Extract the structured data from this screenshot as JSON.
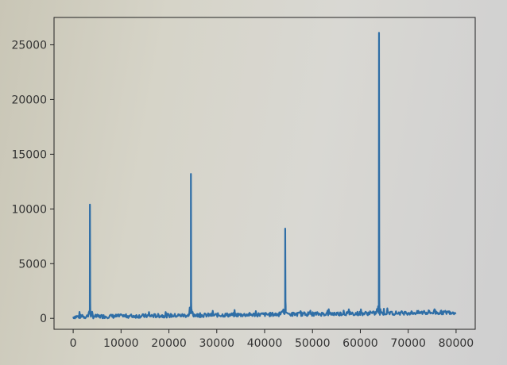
{
  "chart_data": {
    "type": "line",
    "title": "",
    "xlabel": "",
    "ylabel": "",
    "xlim": [
      -4000,
      84000
    ],
    "ylim": [
      -1000,
      27500
    ],
    "xticks": [
      0,
      10000,
      20000,
      30000,
      40000,
      50000,
      60000,
      70000,
      80000
    ],
    "yticks": [
      0,
      5000,
      10000,
      15000,
      20000,
      25000
    ],
    "grid": false,
    "legend": "none",
    "series": [
      {
        "color": "#2f6ea6",
        "x_range": [
          0,
          80000
        ],
        "baseline_start": 150,
        "baseline_end": 550,
        "noise_amplitude": 180,
        "spikes": [
          {
            "x": 3500,
            "y": 10400
          },
          {
            "x": 24600,
            "y": 13200
          },
          {
            "x": 44300,
            "y": 8200
          },
          {
            "x": 63900,
            "y": 26100
          }
        ]
      }
    ]
  }
}
